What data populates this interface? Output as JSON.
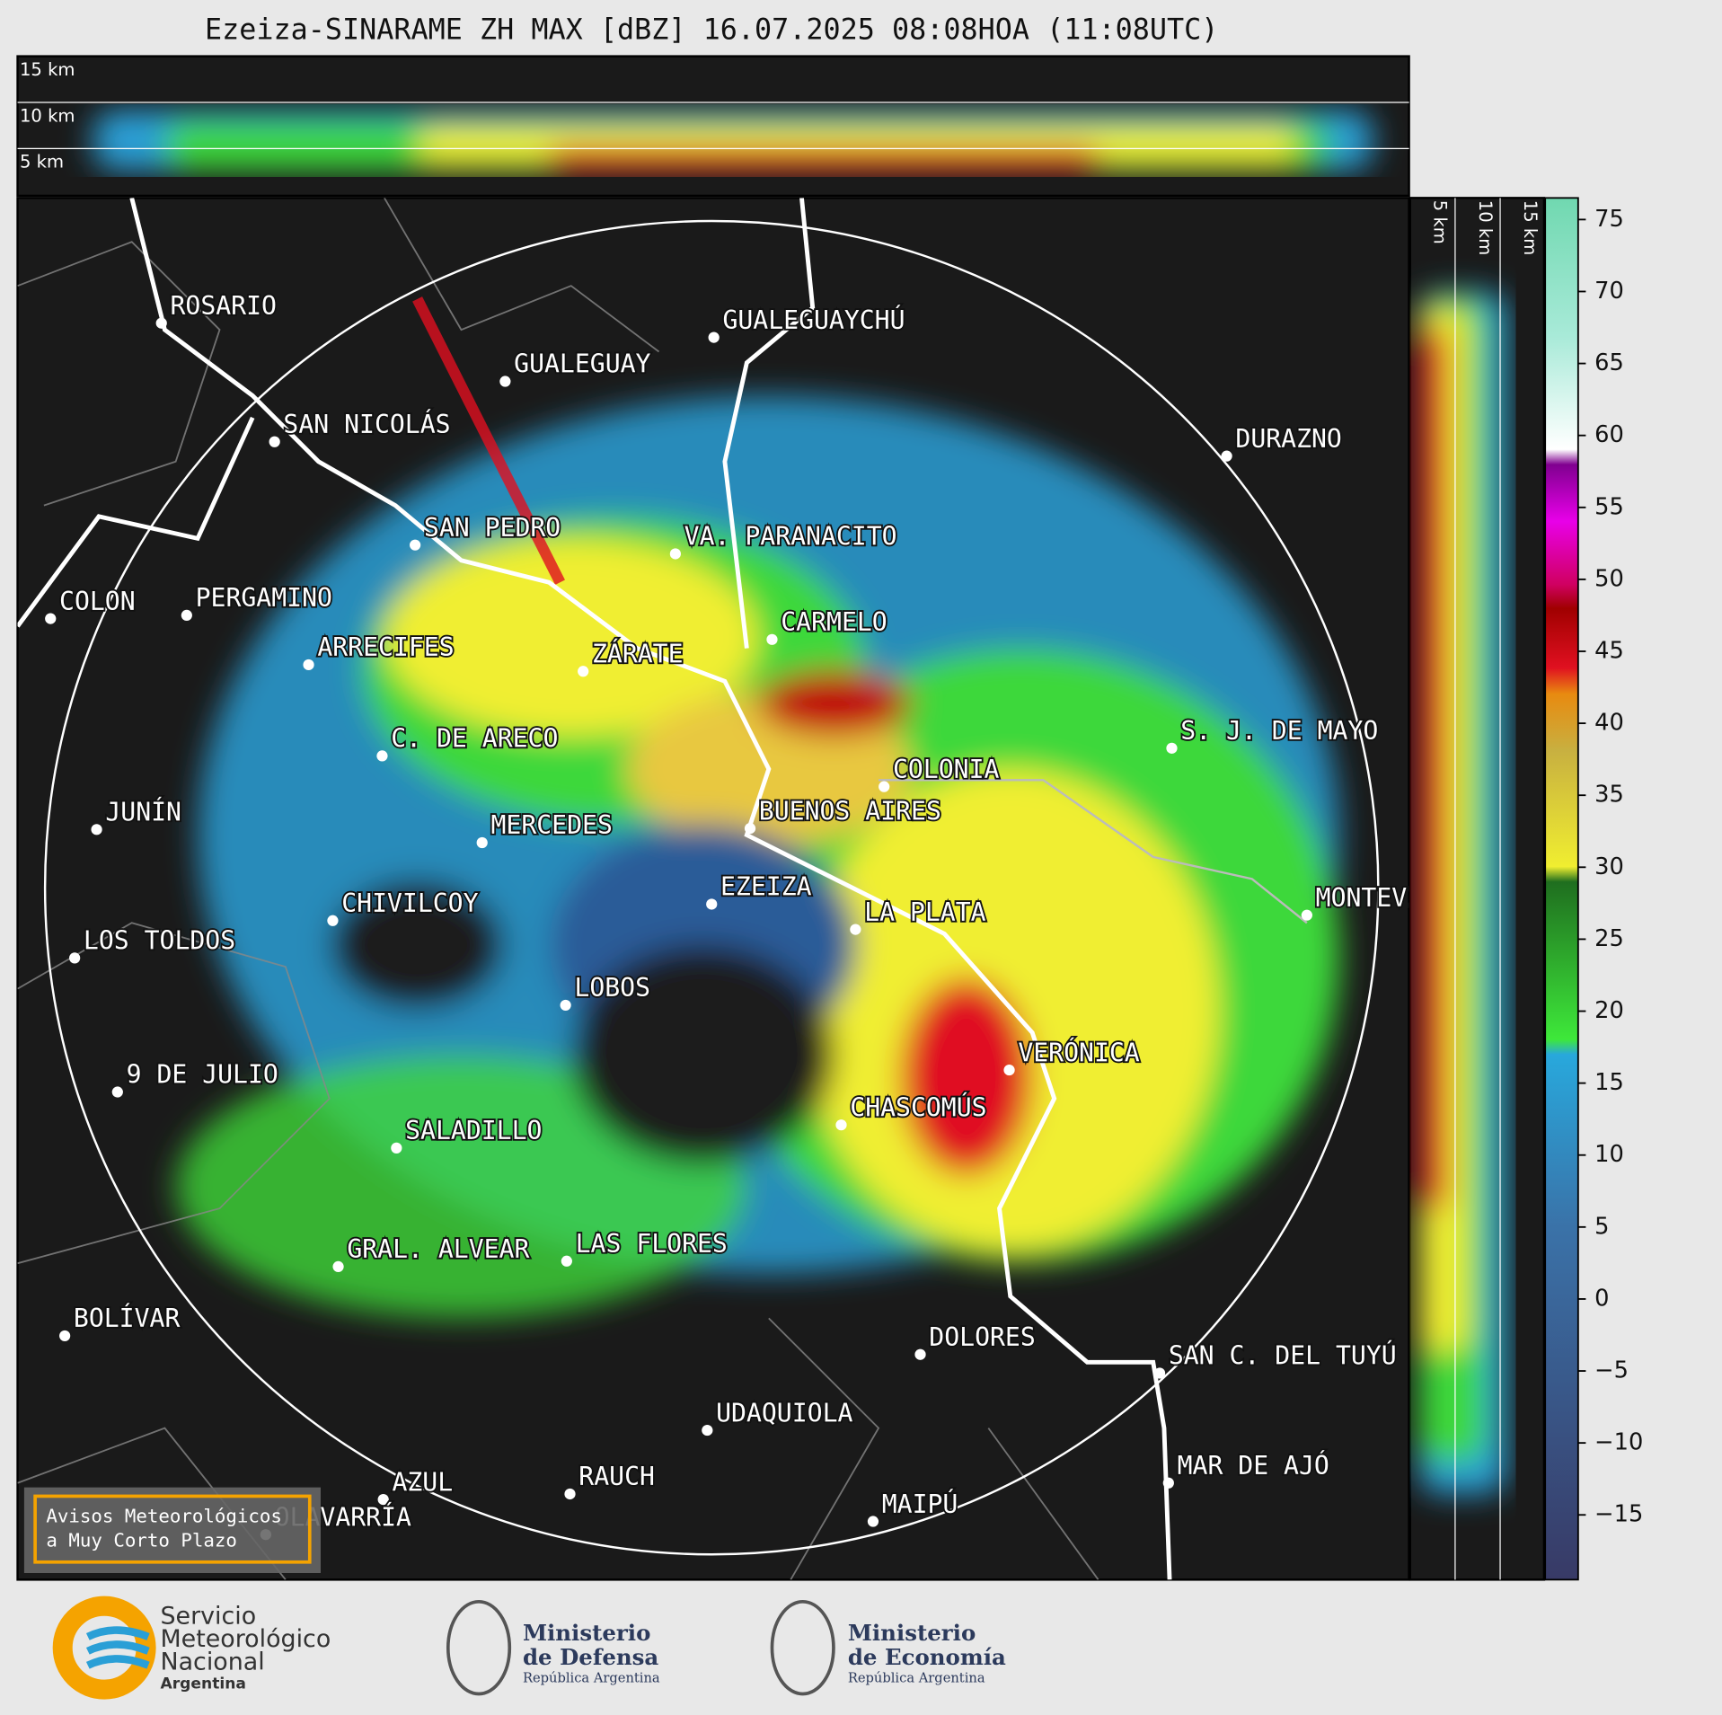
{
  "header": {
    "title": "Ezeiza-SINARAME ZH MAX [dBZ] 16.07.2025 08:08HOA (11:08UTC)"
  },
  "top_panel": {
    "labels": [
      "15 km",
      "10 km",
      "5 km"
    ]
  },
  "side_panel": {
    "labels": [
      "5 km",
      "10 km",
      "15 km"
    ]
  },
  "colorbar": {
    "ylim": [
      -19.5,
      76.5
    ],
    "ticks": [
      {
        "value": -15,
        "label": "−15"
      },
      {
        "value": -10,
        "label": "−10"
      },
      {
        "value": -5,
        "label": "−5"
      },
      0,
      5,
      10,
      15,
      20,
      25,
      30,
      35,
      40,
      45,
      50,
      55,
      60,
      65,
      70,
      75
    ]
  },
  "cities": [
    "ROSARIO",
    "GUALEGUAYCHÚ",
    "GUALEGUAY",
    "SAN NICOLÁS",
    "DURAZNO",
    "SAN PEDRO",
    "VA. PARANACITO",
    "COLON",
    "PERGAMINO",
    "CARMELO",
    "ARRECIFES",
    "ZÁRATE",
    "C. DE ARECO",
    "S. J. DE MAYO",
    "COLONIA",
    "JUNÍN",
    "BUENOS AIRES",
    "MERCEDES",
    "EZEIZA",
    "MONTEVIDEO",
    "CHIVILCOY",
    "LA PLATA",
    "LOS TOLDOS",
    "LOBOS",
    "VERÓNICA",
    "9 DE JULIO",
    "CHASCOMÚS",
    "SALADILLO",
    "GRAL. ALVEAR",
    "LAS FLORES",
    "BOLÍVAR",
    "DOLORES",
    "SAN C. DEL TUYÚ",
    "UDAQUIOLA",
    "MAR DE AJÓ",
    "RAUCH",
    "AZUL",
    "OLAVARRÍA",
    "MAIPÚ"
  ],
  "warning_button": {
    "lines": [
      "Avisos Meteorológicos",
      "a Muy Corto Plazo"
    ]
  },
  "footer": {
    "smn": {
      "lines": [
        "Servicio",
        "Meteorológico",
        "Nacional"
      ],
      "country": "Argentina"
    },
    "defensa": {
      "lines": [
        "Ministerio",
        "de Defensa"
      ],
      "sub": "República Argentina"
    },
    "economia": {
      "lines": [
        "Ministerio",
        "de Economía"
      ],
      "sub": "República Argentina"
    }
  }
}
